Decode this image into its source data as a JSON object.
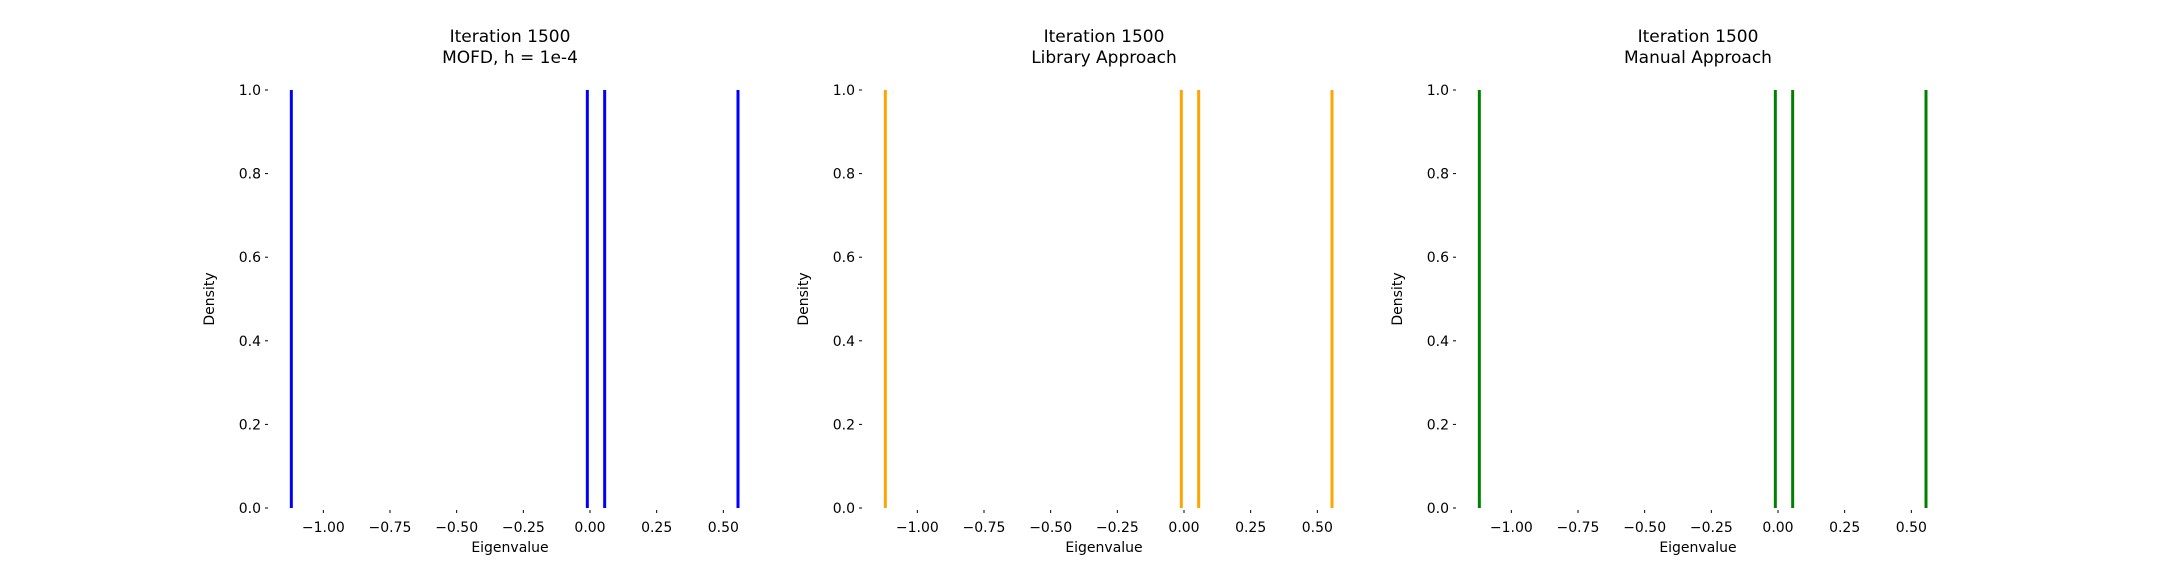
{
  "chart_data": [
    {
      "type": "histogram",
      "title": "Iteration 1500\nMOFD, h = 1e-4",
      "xlabel": "Eigenvalue",
      "ylabel": "Density",
      "color": "#0000ff",
      "xlim": [
        -1.2,
        0.6
      ],
      "ylim": [
        0.0,
        1.0
      ],
      "xticks": [
        -1.0,
        -0.75,
        -0.5,
        -0.25,
        0.0,
        0.25,
        0.5
      ],
      "xtick_labels": [
        "−1.00",
        "−0.75",
        "−0.50",
        "−0.25",
        "0.00",
        "0.25",
        "0.50"
      ],
      "yticks": [
        0.0,
        0.2,
        0.4,
        0.6,
        0.8,
        1.0
      ],
      "ytick_labels": [
        "0.0",
        "0.2",
        "0.4",
        "0.6",
        "0.8",
        "1.0"
      ],
      "eigenvalues": [
        -1.12,
        -0.01,
        0.055,
        0.555
      ],
      "density": [
        1.0,
        1.0,
        1.0,
        1.0
      ]
    },
    {
      "type": "histogram",
      "title": "Iteration 1500\nLibrary Approach",
      "xlabel": "Eigenvalue",
      "ylabel": "Density",
      "color": "#ffa500",
      "xlim": [
        -1.2,
        0.6
      ],
      "ylim": [
        0.0,
        1.0
      ],
      "xticks": [
        -1.0,
        -0.75,
        -0.5,
        -0.25,
        0.0,
        0.25,
        0.5
      ],
      "xtick_labels": [
        "−1.00",
        "−0.75",
        "−0.50",
        "−0.25",
        "0.00",
        "0.25",
        "0.50"
      ],
      "yticks": [
        0.0,
        0.2,
        0.4,
        0.6,
        0.8,
        1.0
      ],
      "ytick_labels": [
        "0.0",
        "0.2",
        "0.4",
        "0.6",
        "0.8",
        "1.0"
      ],
      "eigenvalues": [
        -1.12,
        -0.01,
        0.055,
        0.555
      ],
      "density": [
        1.0,
        1.0,
        1.0,
        1.0
      ]
    },
    {
      "type": "histogram",
      "title": "Iteration 1500\nManual Approach",
      "xlabel": "Eigenvalue",
      "ylabel": "Density",
      "color": "#008000",
      "xlim": [
        -1.2,
        0.6
      ],
      "ylim": [
        0.0,
        1.0
      ],
      "xticks": [
        -1.0,
        -0.75,
        -0.5,
        -0.25,
        0.0,
        0.25,
        0.5
      ],
      "xtick_labels": [
        "−1.00",
        "−0.75",
        "−0.50",
        "−0.25",
        "0.00",
        "0.25",
        "0.50"
      ],
      "yticks": [
        0.0,
        0.2,
        0.4,
        0.6,
        0.8,
        1.0
      ],
      "ytick_labels": [
        "0.0",
        "0.2",
        "0.4",
        "0.6",
        "0.8",
        "1.0"
      ],
      "eigenvalues": [
        -1.12,
        -0.01,
        0.055,
        0.555
      ],
      "density": [
        1.0,
        1.0,
        1.0,
        1.0
      ]
    }
  ]
}
